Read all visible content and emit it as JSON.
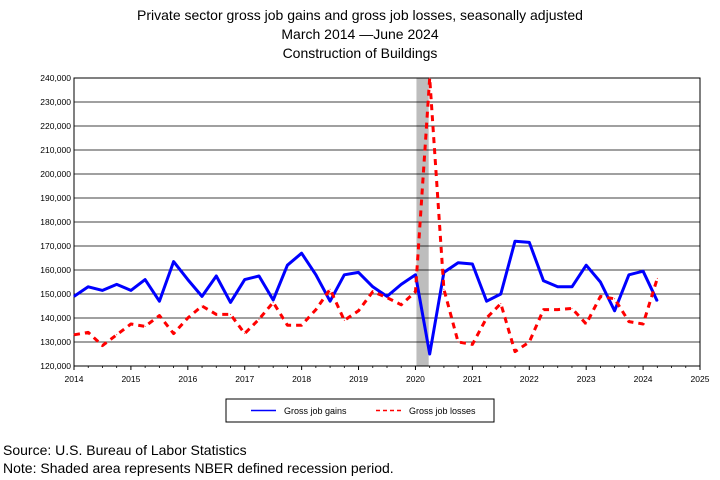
{
  "titles": {
    "line1": "Private sector gross job gains and gross job losses, seasonally adjusted",
    "line2": "March 2014 —June 2024",
    "line3": "Construction of Buildings"
  },
  "footnotes": {
    "source": "Source: U.S. Bureau of Labor Statistics",
    "note": "Note: Shaded area represents NBER defined recession period."
  },
  "chart_data": {
    "type": "line",
    "title": "Private sector gross job gains and gross job losses, seasonally adjusted",
    "subtitle": "March 2014 —June 2024 — Construction of Buildings",
    "xlim": [
      2014,
      2025
    ],
    "ylim": [
      120000,
      240000
    ],
    "x_ticks": [
      "2014",
      "2015",
      "2016",
      "2017",
      "2018",
      "2019",
      "2020",
      "2021",
      "2022",
      "2023",
      "2024",
      "2025"
    ],
    "y_ticks": [
      "120,000",
      "130,000",
      "140,000",
      "150,000",
      "160,000",
      "170,000",
      "180,000",
      "190,000",
      "200,000",
      "210,000",
      "220,000",
      "230,000",
      "240,000"
    ],
    "grid": "horizontal",
    "legend_position": "bottom",
    "recession": {
      "start": 2020.0,
      "end": 2020.25,
      "color": "#bdbdbd"
    },
    "series": [
      {
        "name": "Gross job gains",
        "color": "#0000ff",
        "style": "solid",
        "points": [
          [
            2014.0,
            149000
          ],
          [
            2014.25,
            153000
          ],
          [
            2014.5,
            151500
          ],
          [
            2014.75,
            154000
          ],
          [
            2015.0,
            151500
          ],
          [
            2015.25,
            156000
          ],
          [
            2015.5,
            147000
          ],
          [
            2015.75,
            163500
          ],
          [
            2016.0,
            156000
          ],
          [
            2016.25,
            149000
          ],
          [
            2016.5,
            157500
          ],
          [
            2016.75,
            146500
          ],
          [
            2017.0,
            156000
          ],
          [
            2017.25,
            157500
          ],
          [
            2017.5,
            147500
          ],
          [
            2017.75,
            162000
          ],
          [
            2018.0,
            167000
          ],
          [
            2018.25,
            158000
          ],
          [
            2018.5,
            147000
          ],
          [
            2018.75,
            158000
          ],
          [
            2019.0,
            159000
          ],
          [
            2019.25,
            153000
          ],
          [
            2019.5,
            149000
          ],
          [
            2019.75,
            154000
          ],
          [
            2020.0,
            158000
          ],
          [
            2020.25,
            125000
          ],
          [
            2020.5,
            159000
          ],
          [
            2020.75,
            163000
          ],
          [
            2021.0,
            162500
          ],
          [
            2021.25,
            147000
          ],
          [
            2021.5,
            150000
          ],
          [
            2021.75,
            172000
          ],
          [
            2022.0,
            171500
          ],
          [
            2022.25,
            155500
          ],
          [
            2022.5,
            153000
          ],
          [
            2022.75,
            153000
          ],
          [
            2023.0,
            162000
          ],
          [
            2023.25,
            155000
          ],
          [
            2023.5,
            143000
          ],
          [
            2023.75,
            158000
          ],
          [
            2024.0,
            159500
          ],
          [
            2024.25,
            147000
          ]
        ]
      },
      {
        "name": "Gross job losses",
        "color": "#ff0000",
        "style": "dashed",
        "points": [
          [
            2014.0,
            133000
          ],
          [
            2014.25,
            134000
          ],
          [
            2014.5,
            128500
          ],
          [
            2014.75,
            133000
          ],
          [
            2015.0,
            137500
          ],
          [
            2015.25,
            136500
          ],
          [
            2015.5,
            141000
          ],
          [
            2015.75,
            133500
          ],
          [
            2016.0,
            140000
          ],
          [
            2016.25,
            145000
          ],
          [
            2016.5,
            141500
          ],
          [
            2016.75,
            141500
          ],
          [
            2017.0,
            133500
          ],
          [
            2017.25,
            139500
          ],
          [
            2017.5,
            146500
          ],
          [
            2017.75,
            137000
          ],
          [
            2018.0,
            137000
          ],
          [
            2018.25,
            143500
          ],
          [
            2018.5,
            152000
          ],
          [
            2018.75,
            139000
          ],
          [
            2019.0,
            143000
          ],
          [
            2019.25,
            151000
          ],
          [
            2019.5,
            148500
          ],
          [
            2019.75,
            145500
          ],
          [
            2020.0,
            151000
          ],
          [
            2020.25,
            240000
          ],
          [
            2020.5,
            152000
          ],
          [
            2020.75,
            130000
          ],
          [
            2021.0,
            129000
          ],
          [
            2021.25,
            140000
          ],
          [
            2021.5,
            146000
          ],
          [
            2021.75,
            126000
          ],
          [
            2022.0,
            130000
          ],
          [
            2022.25,
            143500
          ],
          [
            2022.5,
            143500
          ],
          [
            2022.75,
            144000
          ],
          [
            2023.0,
            137500
          ],
          [
            2023.25,
            149000
          ],
          [
            2023.5,
            148000
          ],
          [
            2023.75,
            138500
          ],
          [
            2024.0,
            137500
          ],
          [
            2024.25,
            156500
          ]
        ]
      }
    ]
  }
}
